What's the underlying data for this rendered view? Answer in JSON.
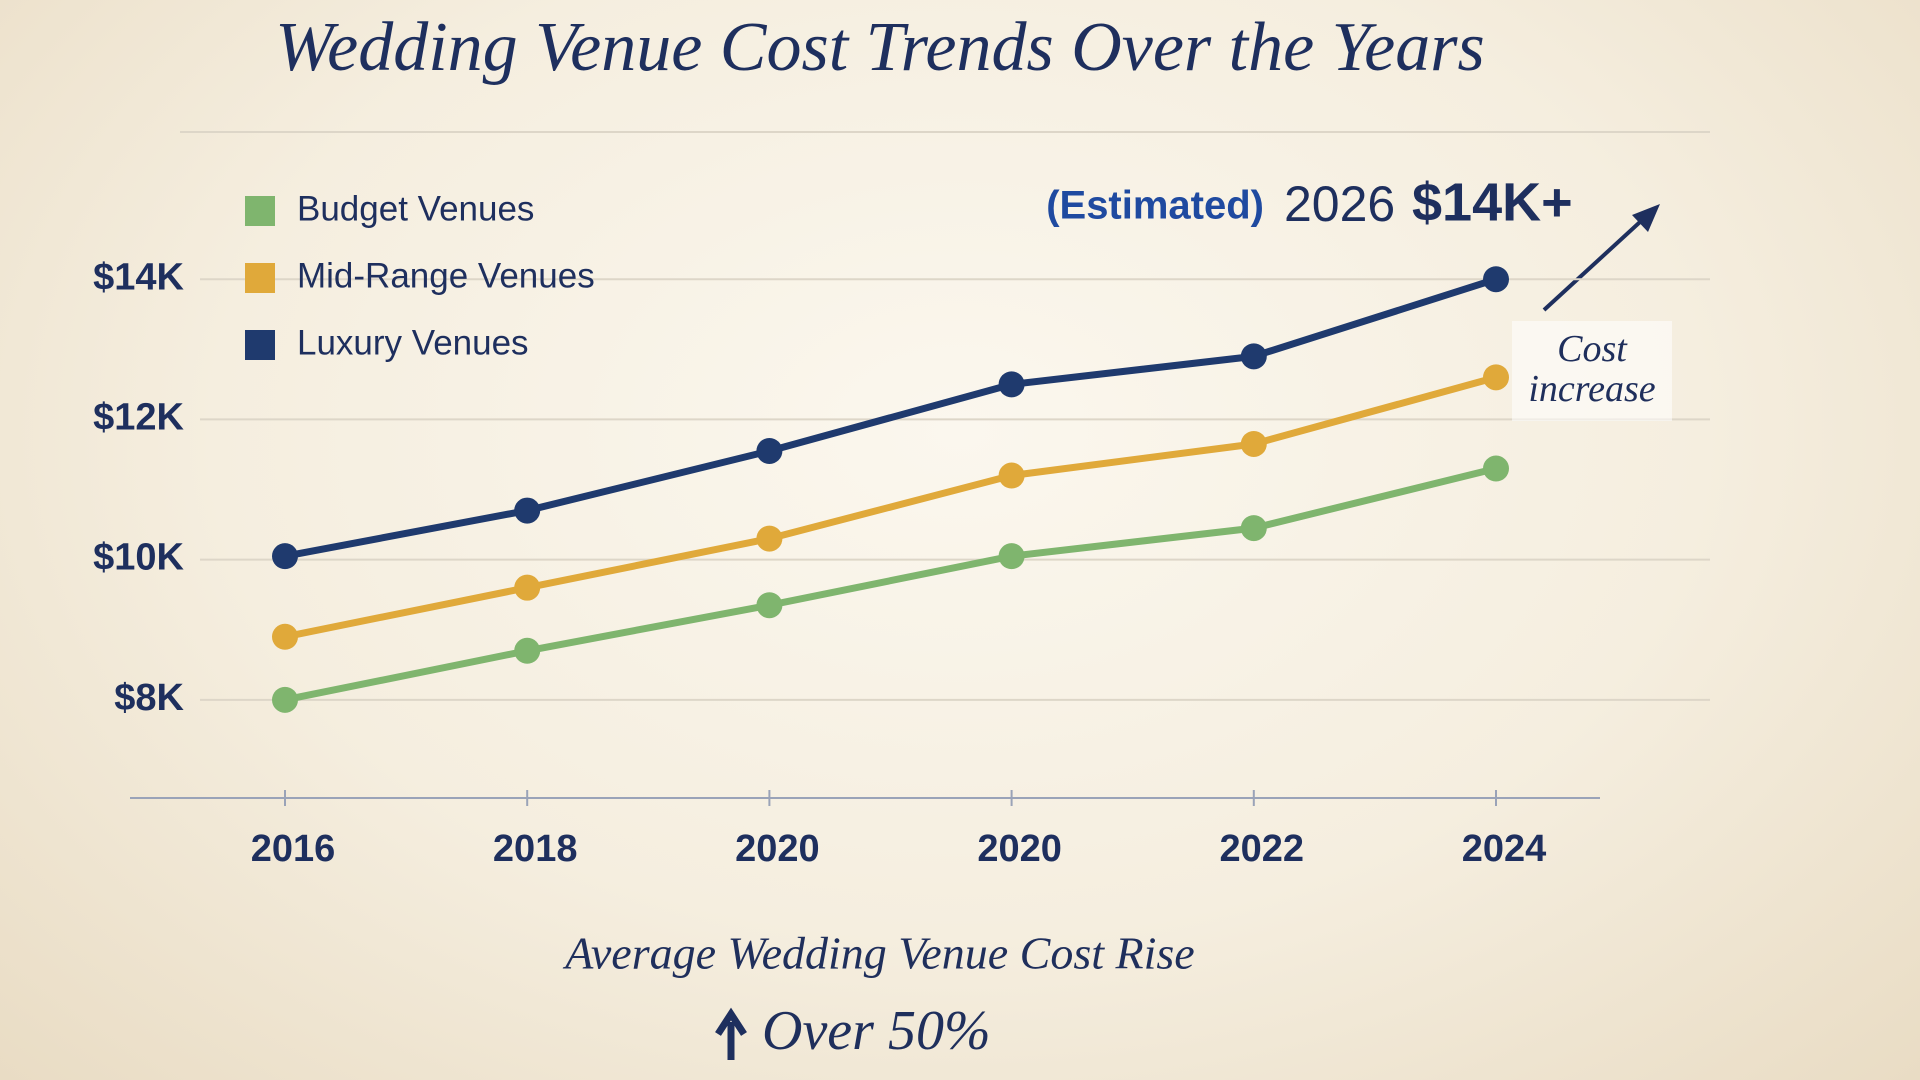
{
  "chart_data": {
    "type": "line",
    "title": "Wedding Venue Cost Trends Over the Years",
    "subtitle": "Average Wedding Venue Cost Rise",
    "highlight": "Over 50%",
    "forecast_note": "(Estimated)",
    "forecast_year": "2026",
    "forecast_value": "$14K+",
    "callout": "Cost increase",
    "categories": [
      "2016",
      "2018",
      "2020",
      "2020",
      "2022",
      "2024"
    ],
    "series": [
      {
        "name": "Budget Venues",
        "color": "#7fb56e",
        "values": [
          8000,
          8700,
          9350,
          10050,
          10450,
          11300
        ]
      },
      {
        "name": "Mid-Range Venues",
        "color": "#e0a93a",
        "values": [
          8900,
          9600,
          10300,
          11200,
          11650,
          12600
        ]
      },
      {
        "name": "Luxury Venues",
        "color": "#1f3a6e",
        "values": [
          10050,
          10700,
          11550,
          12500,
          12900,
          14000
        ]
      }
    ],
    "ylim": [
      6600,
      16100
    ],
    "yticks": [
      {
        "value": 8000,
        "label": "$8K"
      },
      {
        "value": 10000,
        "label": "$10K"
      },
      {
        "value": 12000,
        "label": "$12K"
      },
      {
        "value": 14000,
        "label": "$14K"
      }
    ],
    "grid": true,
    "legend": "top-left"
  }
}
